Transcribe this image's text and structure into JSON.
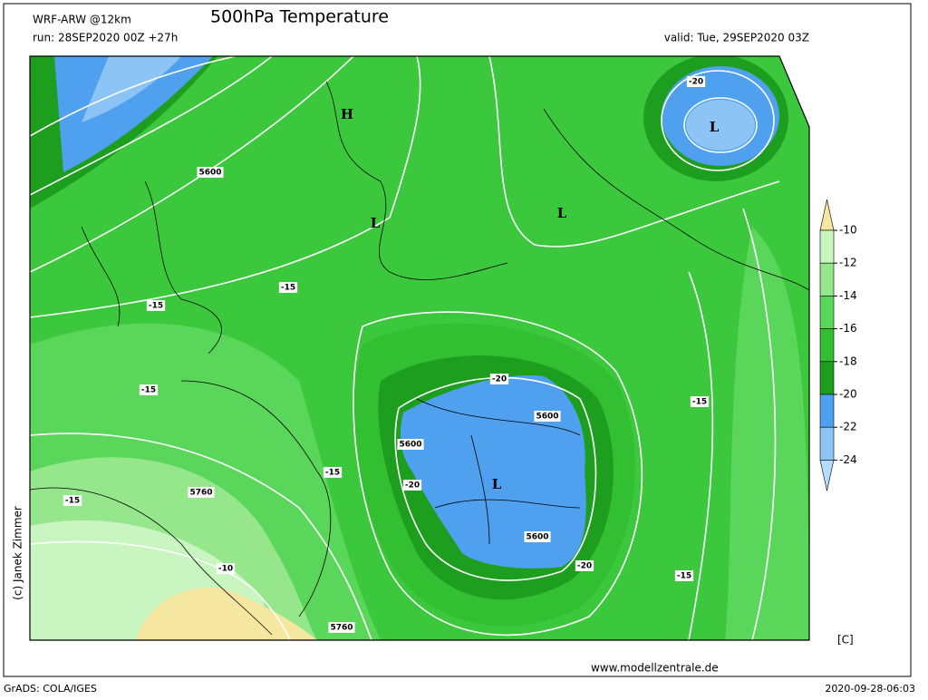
{
  "header": {
    "model": "WRF-ARW @12km",
    "title": "500hPa Temperature",
    "run": "run: 28SEP2020 00Z +27h",
    "valid": "valid: Tue, 29SEP2020 03Z"
  },
  "colorbar": {
    "levels": [
      -10,
      -12,
      -14,
      -16,
      -18,
      -20,
      -22,
      -24
    ],
    "colors": [
      "#f5e6a0",
      "#c8f5c0",
      "#96e68c",
      "#5ad75a",
      "#32c032",
      "#1e9e1e",
      "#50a0f0",
      "#8cc4f5",
      "#b4dcfa"
    ],
    "unit": "[C]"
  },
  "map": {
    "pressure_centers": [
      "H",
      "L",
      "L",
      "L",
      "L"
    ],
    "contour_labels": [
      "5600",
      "-15",
      "-15",
      "-15",
      "-15",
      "-15",
      "5760",
      "-10",
      "5760",
      "5600",
      "-20",
      "-20",
      "5600",
      "5600",
      "-20",
      "-15",
      "-15",
      "-20"
    ]
  },
  "footer": {
    "credit": "(c) Janek Zimmer",
    "url": "www.modellzentrale.de",
    "software": "GrADS: COLA/IGES",
    "timestamp": "2020-09-28-06:03"
  }
}
